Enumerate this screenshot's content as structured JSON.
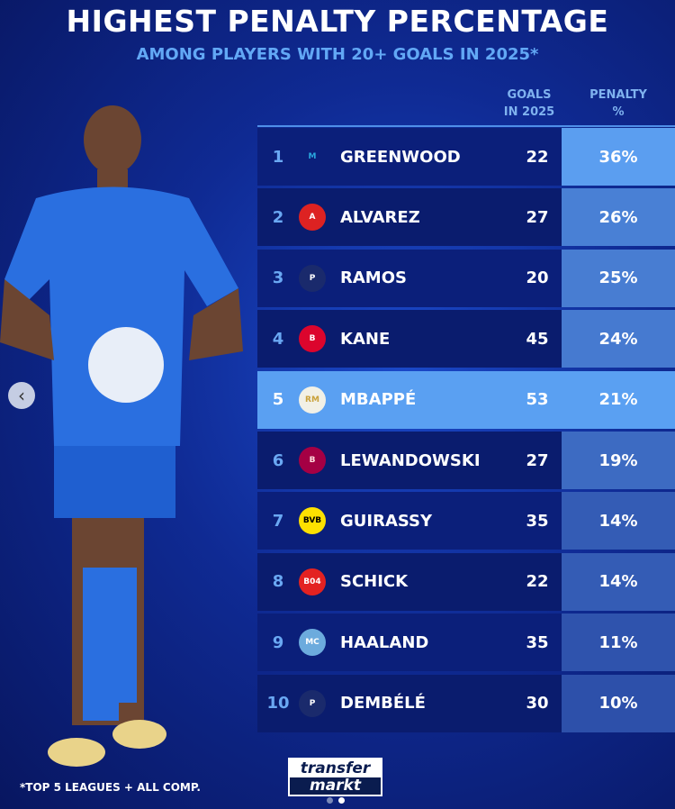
{
  "title": "HIGHEST PENALTY PERCENTAGE",
  "subtitle": "AMONG PLAYERS WITH 20+ GOALS IN 2025*",
  "footnote": "*TOP 5 LEAGUES + ALL COMP.",
  "brand": {
    "line1": "transfer",
    "line2": "markt"
  },
  "carousel": {
    "prev_icon": "chevron-left-icon",
    "pages": 2,
    "current": 2
  },
  "colors": {
    "highlight": "#5aa0f2",
    "accent": "#62a8f5"
  },
  "chart_data": {
    "type": "table",
    "columns": [
      "",
      "",
      "",
      "GOALS IN 2025",
      "PENALTY %"
    ],
    "col_goals_line1": "GOALS",
    "col_goals_line2": "IN 2025",
    "col_pct_line1": "PENALTY",
    "col_pct_line2": "%",
    "highlighted_rank": 5,
    "rows": [
      {
        "rank": "1",
        "club": "Marseille",
        "name": "GREENWOOD",
        "goals": "22",
        "pct": "36%",
        "value": 36
      },
      {
        "rank": "2",
        "club": "Atletico Madrid",
        "name": "ALVAREZ",
        "goals": "27",
        "pct": "26%",
        "value": 26
      },
      {
        "rank": "3",
        "club": "PSG",
        "name": "RAMOS",
        "goals": "20",
        "pct": "25%",
        "value": 25
      },
      {
        "rank": "4",
        "club": "Bayern Munich",
        "name": "KANE",
        "goals": "45",
        "pct": "24%",
        "value": 24
      },
      {
        "rank": "5",
        "club": "Real Madrid",
        "name": "MBAPPÉ",
        "goals": "53",
        "pct": "21%",
        "value": 21
      },
      {
        "rank": "6",
        "club": "Barcelona",
        "name": "LEWANDOWSKI",
        "goals": "27",
        "pct": "19%",
        "value": 19
      },
      {
        "rank": "7",
        "club": "Borussia Dortmund",
        "name": "GUIRASSY",
        "goals": "35",
        "pct": "14%",
        "value": 14
      },
      {
        "rank": "8",
        "club": "Bayer Leverkusen",
        "name": "SCHICK",
        "goals": "22",
        "pct": "14%",
        "value": 14
      },
      {
        "rank": "9",
        "club": "Manchester City",
        "name": "HAALAND",
        "goals": "35",
        "pct": "11%",
        "value": 11
      },
      {
        "rank": "10",
        "club": "PSG",
        "name": "DEMBÉLÉ",
        "goals": "30",
        "pct": "10%",
        "value": 10
      }
    ]
  }
}
